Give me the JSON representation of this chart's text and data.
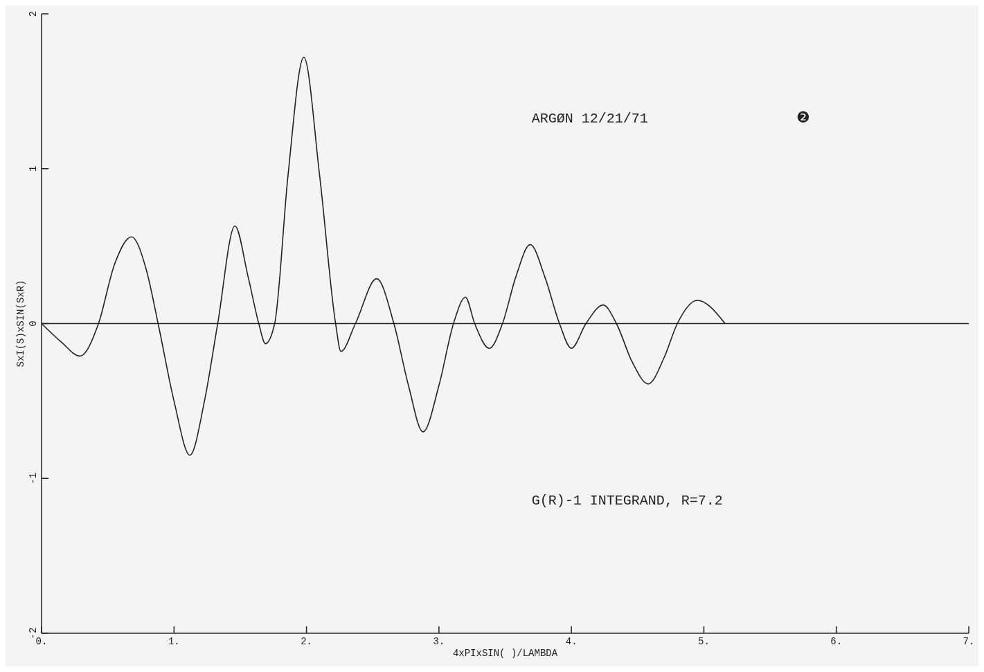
{
  "chart_data": {
    "type": "line",
    "xlabel": "4xPIxSIN( )/LAMBDA",
    "ylabel": "SxI(S)xSIN(SxR)",
    "annotations": [
      "ARGØN 12/21/71",
      "❷",
      "G(R)-1 INTEGRAND, R=7.2"
    ],
    "xlim": [
      0,
      7
    ],
    "ylim": [
      -2,
      2
    ],
    "xticks": [
      {
        "value": 0,
        "label": "0."
      },
      {
        "value": 1,
        "label": "1."
      },
      {
        "value": 2,
        "label": "2."
      },
      {
        "value": 3,
        "label": "3."
      },
      {
        "value": 4,
        "label": "4."
      },
      {
        "value": 5,
        "label": "5."
      },
      {
        "value": 6,
        "label": "6."
      },
      {
        "value": 7,
        "label": "7."
      }
    ],
    "yticks": [
      -2,
      -1,
      0,
      1,
      2
    ],
    "grid": false,
    "marker": "none",
    "line_style": "solid",
    "ref_lines": [
      {
        "axis": "y",
        "value": 0,
        "color": "#222222"
      }
    ],
    "series": [
      {
        "color": "#222222",
        "x": [
          0,
          0.15,
          0.29,
          0.43,
          0.55,
          0.68,
          0.79,
          0.88,
          1.0,
          1.12,
          1.23,
          1.33,
          1.46,
          1.56,
          1.64,
          1.69,
          1.76,
          1.86,
          1.98,
          2.1,
          2.22,
          2.26,
          2.37,
          2.53,
          2.66,
          2.77,
          2.88,
          3.0,
          3.11,
          3.2,
          3.27,
          3.38,
          3.48,
          3.58,
          3.69,
          3.8,
          3.91,
          4.0,
          4.11,
          4.24,
          4.34,
          4.46,
          4.58,
          4.7,
          4.8,
          4.95,
          5.16
        ],
        "values": [
          0,
          -0.12,
          -0.21,
          0,
          0.38,
          0.56,
          0.35,
          0,
          -0.5,
          -0.85,
          -0.5,
          0,
          0.63,
          0.3,
          0,
          -0.13,
          0,
          0.95,
          1.72,
          0.95,
          0,
          -0.18,
          0,
          0.29,
          0,
          -0.4,
          -0.7,
          -0.4,
          0,
          0.17,
          0,
          -0.16,
          0,
          0.3,
          0.51,
          0.3,
          0,
          -0.16,
          0,
          0.12,
          0,
          -0.25,
          -0.39,
          -0.22,
          0,
          0.15,
          0
        ]
      }
    ]
  }
}
